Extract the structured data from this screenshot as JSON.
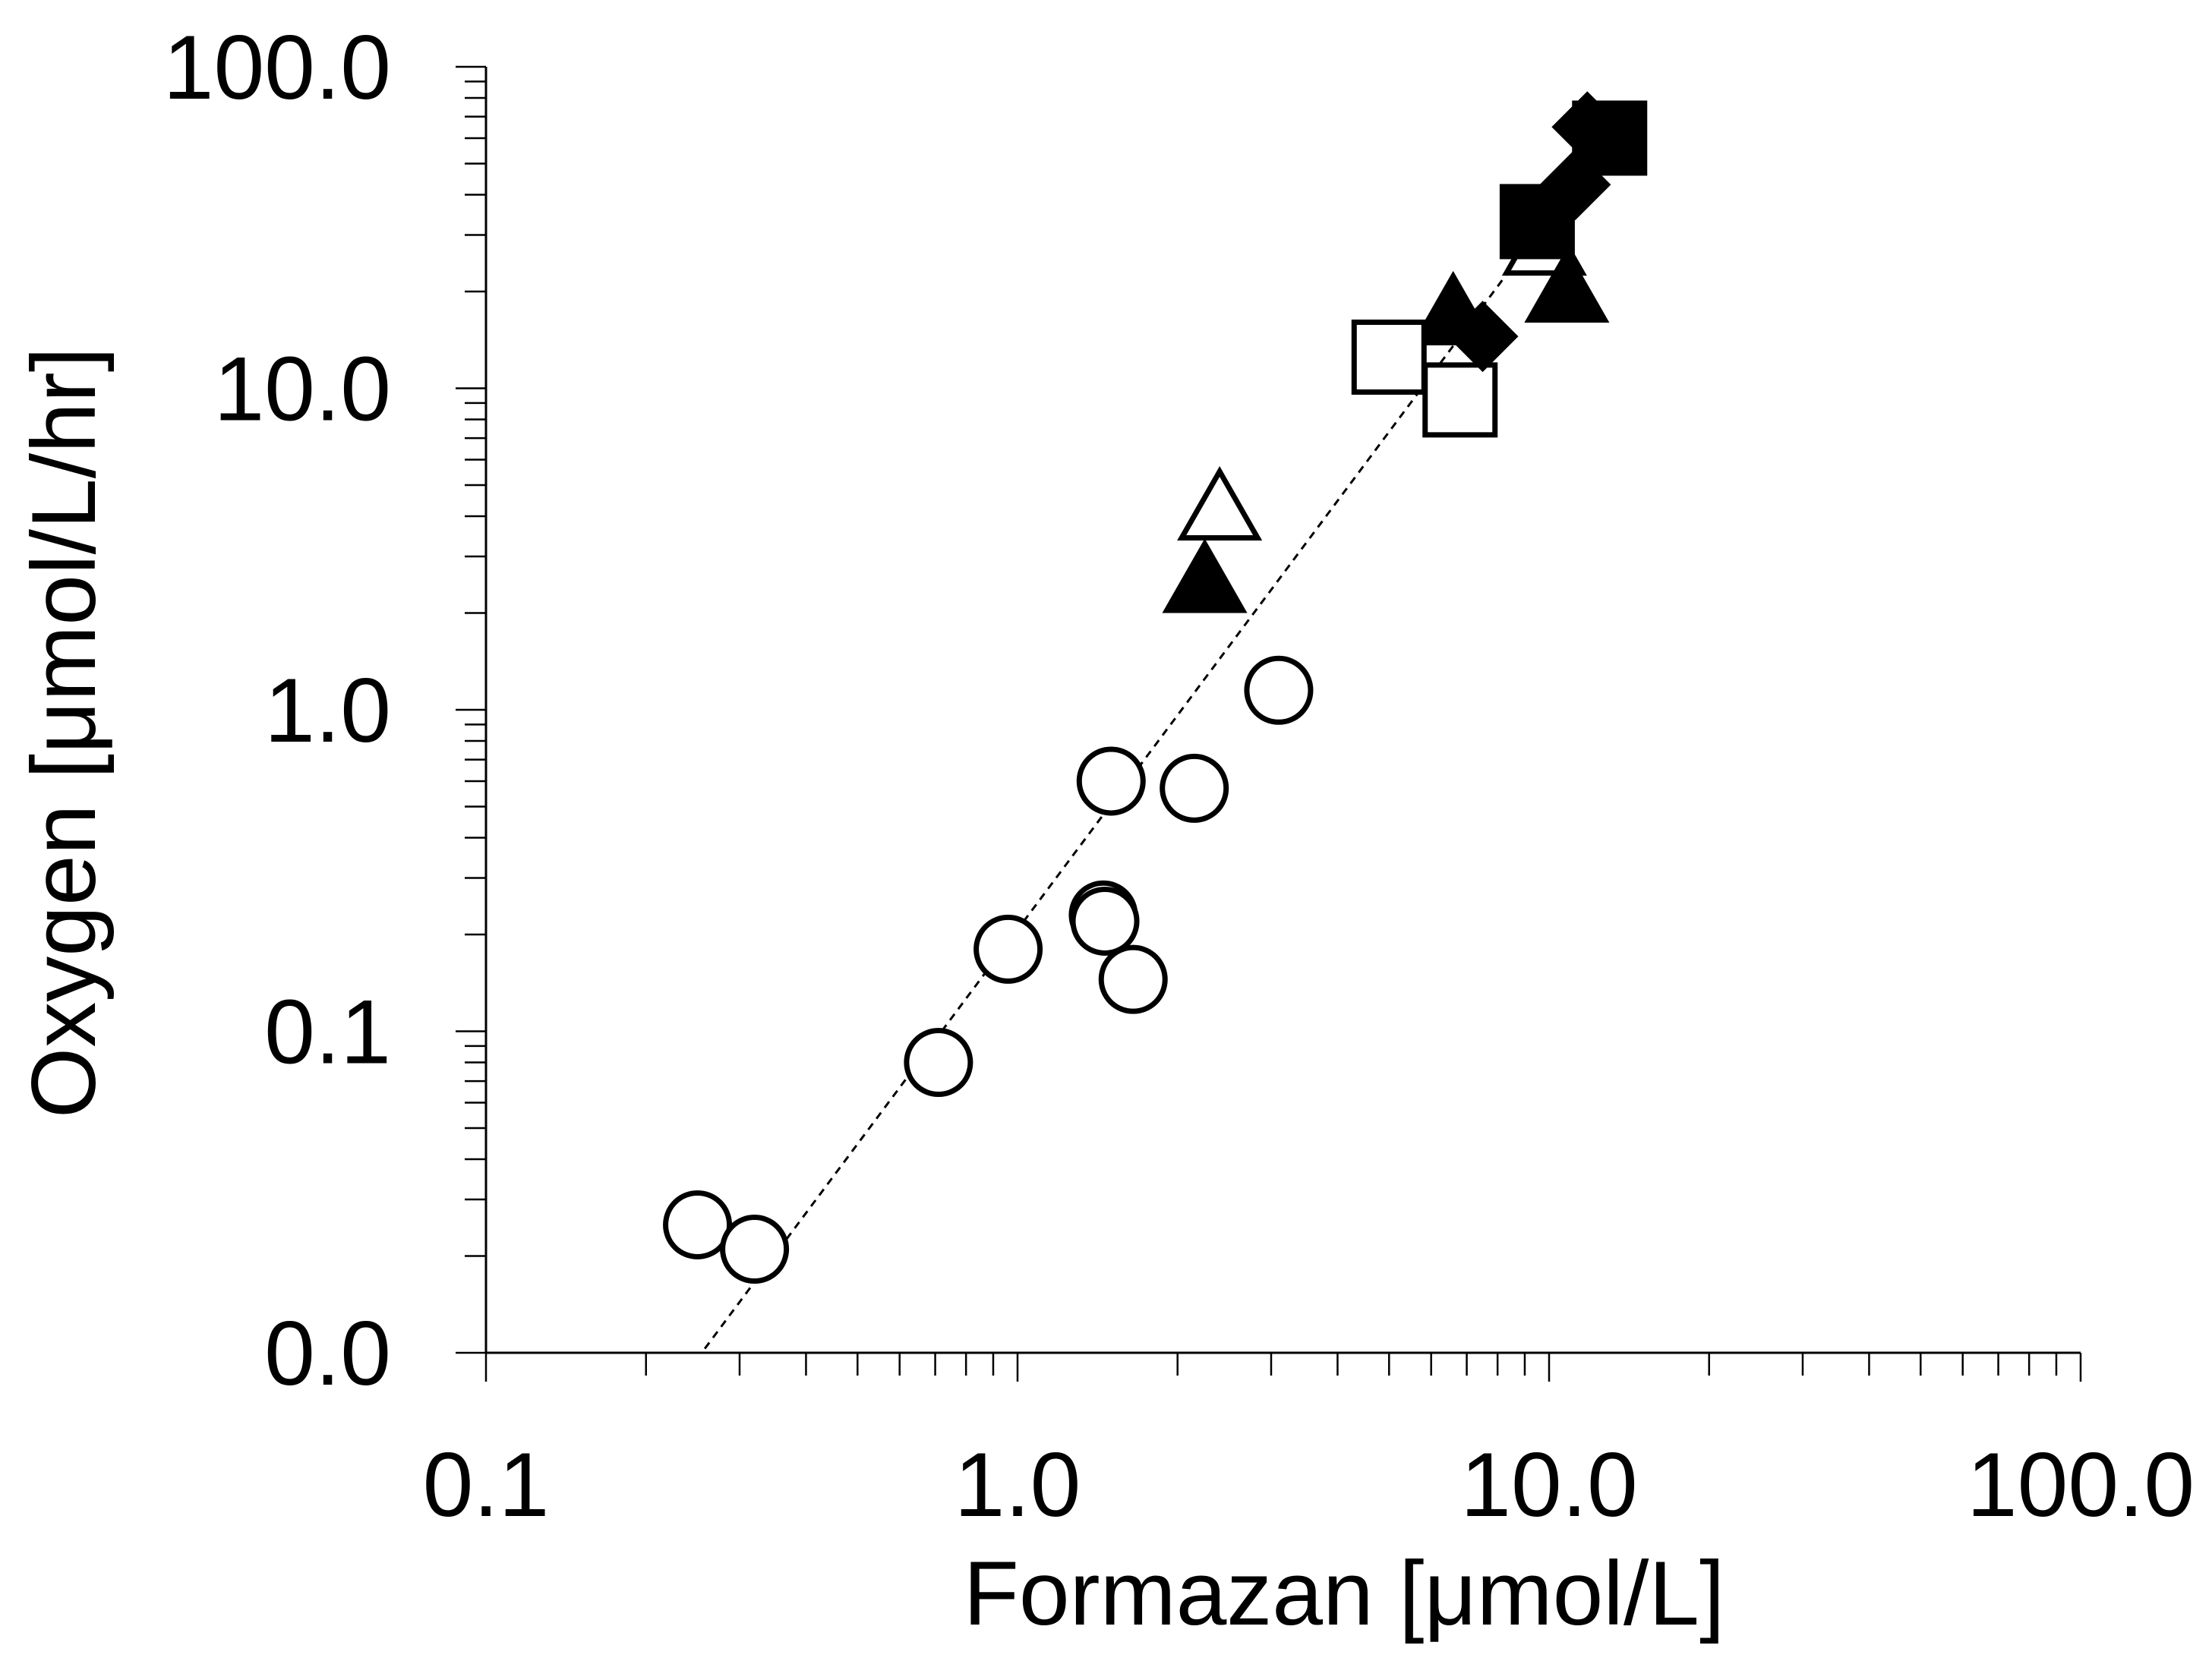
{
  "chart_data": {
    "type": "scatter",
    "title": "",
    "xlabel": "Formazan [μmol/L]",
    "ylabel": "Oxygen [μmol/L/hr]",
    "x_scale": "log",
    "y_scale": "log",
    "xlim": [
      0.1,
      100
    ],
    "ylim": [
      0.01,
      100
    ],
    "x_ticks": [
      0.1,
      1,
      10,
      100
    ],
    "x_tick_labels": [
      "0.1",
      "1.0",
      "10.0",
      "100.0"
    ],
    "y_ticks": [
      0.01,
      0.1,
      1,
      10,
      100
    ],
    "y_tick_labels": [
      "0.0",
      "0.1",
      "1.0",
      "10.0",
      "100.0"
    ],
    "grid": false,
    "legend": "none",
    "series": [
      {
        "marker": "circle-open",
        "points": [
          {
            "x": 0.25,
            "y": 0.025
          },
          {
            "x": 0.32,
            "y": 0.021
          },
          {
            "x": 0.71,
            "y": 0.08
          },
          {
            "x": 0.96,
            "y": 0.18
          },
          {
            "x": 1.45,
            "y": 0.23
          },
          {
            "x": 1.46,
            "y": 0.22
          },
          {
            "x": 1.65,
            "y": 0.145
          },
          {
            "x": 1.5,
            "y": 0.6
          },
          {
            "x": 2.15,
            "y": 0.57
          },
          {
            "x": 3.1,
            "y": 1.15
          }
        ]
      },
      {
        "marker": "triangle-open",
        "points": [
          {
            "x": 2.4,
            "y": 4.2
          },
          {
            "x": 9.8,
            "y": 28
          }
        ]
      },
      {
        "marker": "triangle-filled",
        "points": [
          {
            "x": 2.25,
            "y": 2.5
          },
          {
            "x": 6.6,
            "y": 17
          },
          {
            "x": 10.8,
            "y": 20
          }
        ]
      },
      {
        "marker": "square-open",
        "points": [
          {
            "x": 5.0,
            "y": 12.5
          },
          {
            "x": 6.8,
            "y": 9.2
          }
        ]
      },
      {
        "marker": "square-filled",
        "points": [
          {
            "x": 9.5,
            "y": 33
          },
          {
            "x": 13.0,
            "y": 60
          }
        ]
      },
      {
        "marker": "diamond-filled",
        "points": [
          {
            "x": 7.5,
            "y": 14.5
          },
          {
            "x": 11.2,
            "y": 43
          },
          {
            "x": 11.8,
            "y": 65
          }
        ]
      }
    ],
    "trendline": {
      "style": "dotted",
      "x": [
        0.258,
        11
      ],
      "y": [
        0.0103,
        42
      ]
    }
  }
}
